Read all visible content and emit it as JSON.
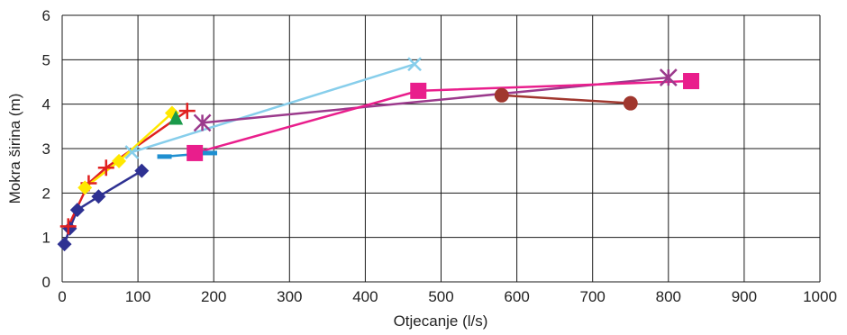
{
  "chart_data": {
    "type": "line",
    "title": "",
    "xlabel": "Otjecanje (l/s)",
    "ylabel": "Mokra širina (m)",
    "xlim": [
      0,
      1000
    ],
    "ylim": [
      0,
      6
    ],
    "xticks": [
      0,
      100,
      200,
      300,
      400,
      500,
      600,
      700,
      800,
      900,
      1000
    ],
    "yticks": [
      0,
      1,
      2,
      3,
      4,
      5,
      6
    ],
    "grid": true,
    "legend": "none",
    "series": [
      {
        "color": "#2e3192",
        "marker": "diamond",
        "points": [
          [
            3,
            0.85
          ],
          [
            10,
            1.2
          ],
          [
            20,
            1.62
          ],
          [
            48,
            1.92
          ],
          [
            105,
            2.5
          ]
        ]
      },
      {
        "color": "#e02020",
        "marker": "plus",
        "points": [
          [
            8,
            1.25
          ],
          [
            35,
            2.22
          ],
          [
            58,
            2.57
          ],
          [
            165,
            3.85
          ]
        ]
      },
      {
        "color": "#ffe800",
        "marker": "diamond",
        "points": [
          [
            30,
            2.12
          ],
          [
            75,
            2.72
          ],
          [
            145,
            3.8
          ]
        ]
      },
      {
        "color": "#1a9a4a",
        "marker": "triangle",
        "points": [
          [
            150,
            3.7
          ]
        ]
      },
      {
        "color": "#87ceeb",
        "marker": "x",
        "points": [
          [
            92,
            2.92
          ],
          [
            465,
            4.9
          ]
        ]
      },
      {
        "color": "#9b3a8c",
        "marker": "star",
        "points": [
          [
            185,
            3.58
          ],
          [
            800,
            4.6
          ]
        ]
      },
      {
        "color": "#e91e8c",
        "marker": "square",
        "points": [
          [
            175,
            2.9
          ],
          [
            470,
            4.3
          ],
          [
            830,
            4.52
          ]
        ]
      },
      {
        "color": "#a0372e",
        "marker": "circle",
        "points": [
          [
            580,
            4.2
          ],
          [
            750,
            4.02
          ]
        ]
      },
      {
        "color": "#1f8fd0",
        "marker": "dash",
        "points": [
          [
            135,
            2.82
          ],
          [
            195,
            2.9
          ]
        ]
      }
    ]
  }
}
